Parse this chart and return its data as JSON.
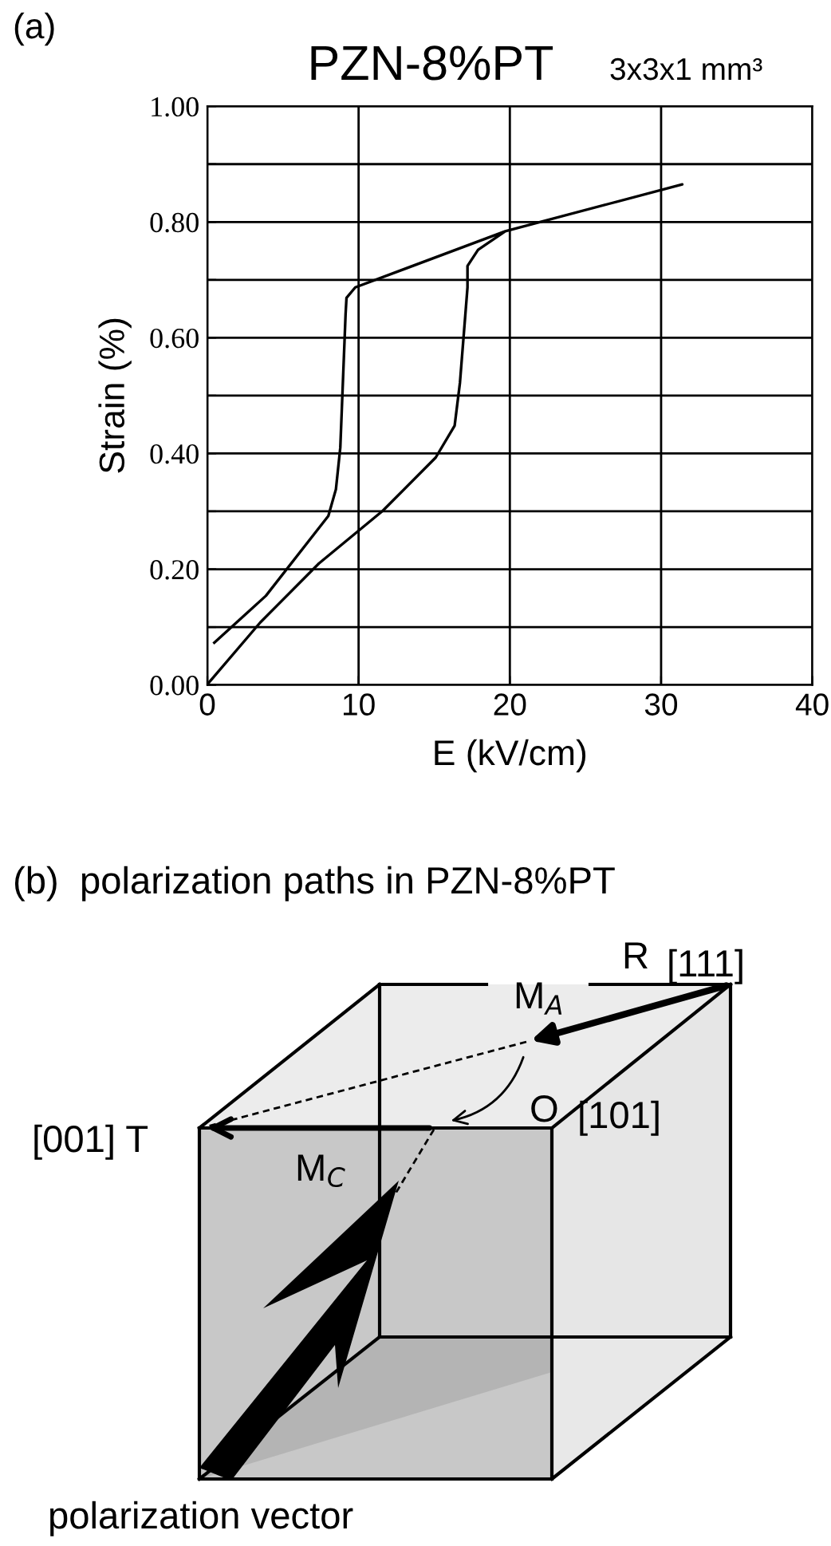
{
  "chart_data": [
    {
      "type": "line",
      "title": "PZN-8%PT",
      "subtitle": "3x3x1 mm³",
      "xlabel": "E (kV/cm)",
      "ylabel": "Strain (%)",
      "annotations": [
        "(a)"
      ],
      "series": [
        {
          "color": "#000000",
          "x": [
            0.07,
            3.5,
            7.38,
            11.6,
            15.1,
            16.35,
            16.7,
            17.2,
            17.2,
            17.9,
            19.7,
            31.4,
            19.7,
            9.78,
            9.2,
            9.14,
            8.79,
            8.5,
            8.0,
            3.87,
            0.46
          ],
          "values": [
            0.003,
            0.108,
            0.21,
            0.301,
            0.393,
            0.448,
            0.522,
            0.687,
            0.724,
            0.752,
            0.784,
            0.865,
            0.784,
            0.687,
            0.669,
            0.641,
            0.41,
            0.338,
            0.292,
            0.154,
            0.073
          ]
        }
      ],
      "xlim": [
        0,
        40
      ],
      "ylim": [
        0,
        1
      ],
      "xticks": [
        0,
        10,
        20,
        30,
        40
      ],
      "yticks": [
        {
          "value": 0,
          "label": "0.00"
        },
        {
          "value": 0.1,
          "label": null
        },
        {
          "value": 0.2,
          "label": "0.20"
        },
        {
          "value": 0.3,
          "label": null
        },
        {
          "value": 0.4,
          "label": "0.40"
        },
        {
          "value": 0.5,
          "label": null
        },
        {
          "value": 0.6,
          "label": "0.60"
        },
        {
          "value": 0.7,
          "label": null
        },
        {
          "value": 0.8,
          "label": "0.80"
        },
        {
          "value": 0.9,
          "label": null
        },
        {
          "value": 1.0,
          "label": "1.00"
        }
      ],
      "grid": true,
      "marker": "none",
      "line_style": "solid",
      "legend": false
    },
    {
      "type": "other",
      "title": "(b)  polarization paths in PZN-8%PT",
      "annotations": [
        "R",
        "[111]",
        "M$_{A}$",
        "O",
        "[101]",
        "[001] T",
        "M$_{C}$",
        "polarization vector"
      ]
    }
  ]
}
